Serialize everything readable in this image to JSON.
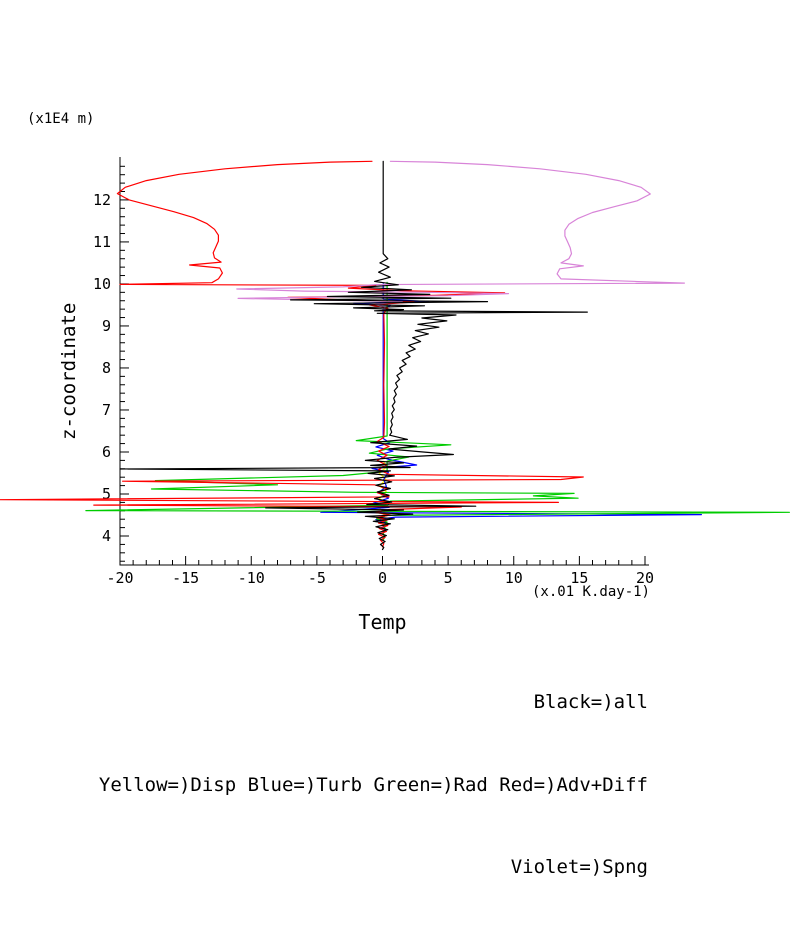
{
  "labels": {
    "legend_line1": "Black=)all",
    "legend_line2": "Yellow=)Disp Blue=)Turb Green=)Rad Red=)Adv+Diff",
    "legend_line3": "Violet=)Spng"
  },
  "chart_data": {
    "type": "line",
    "title": "",
    "xlabel": "Temp",
    "ylabel": "z-coordinate",
    "x_unit_label": "(x.01 K.day-1)",
    "y_unit_label": "(x1E4 m)",
    "xlim": [
      -20,
      20
    ],
    "ylim": [
      3.31,
      12.95
    ],
    "xticks": [
      -20,
      -15,
      -10,
      -5,
      0,
      5,
      10,
      15,
      20
    ],
    "yticks": [
      4,
      5,
      6,
      7,
      8,
      9,
      10,
      11,
      12
    ],
    "x_minor_step": 1,
    "y_minor_step": 0.2,
    "grid": false,
    "legend_position": "below-right",
    "legend_entries": [
      "Black=)all",
      "Yellow=)Disp",
      "Blue=)Turb",
      "Green=)Rad",
      "Red=)Adv+Diff",
      "Violet=)Spng"
    ],
    "series": [
      {
        "name": "Disp",
        "color": "#ffff00",
        "points": [
          [
            0.05,
            5.78
          ],
          [
            0.35,
            5.65
          ],
          [
            -0.25,
            5.5
          ],
          [
            0.25,
            5.35
          ],
          [
            -0.2,
            5.2
          ],
          [
            0.3,
            5.05
          ],
          [
            -0.25,
            4.9
          ],
          [
            0.3,
            4.77
          ],
          [
            -0.2,
            4.65
          ],
          [
            0.2,
            4.55
          ],
          [
            0.0,
            4.45
          ],
          [
            0.12,
            4.35
          ],
          [
            0.0,
            4.25
          ]
        ]
      },
      {
        "name": "Turb",
        "color": "#0000ff",
        "points": [
          [
            0.05,
            10.0
          ],
          [
            0.05,
            9.64
          ],
          [
            3.5,
            9.58
          ],
          [
            -2.2,
            9.54
          ],
          [
            0.6,
            9.49
          ],
          [
            0.05,
            9.4
          ],
          [
            0.05,
            6.32
          ],
          [
            0.55,
            6.22
          ],
          [
            -0.5,
            6.12
          ],
          [
            0.8,
            6.02
          ],
          [
            -0.4,
            5.92
          ],
          [
            0.5,
            5.82
          ],
          [
            2.6,
            5.69
          ],
          [
            -0.8,
            5.61
          ],
          [
            0.45,
            5.52
          ],
          [
            0.1,
            5.35
          ],
          [
            0.3,
            5.18
          ],
          [
            -0.3,
            5.03
          ],
          [
            0.45,
            4.9
          ],
          [
            -0.7,
            4.78
          ],
          [
            0.5,
            4.68
          ],
          [
            -4.7,
            4.565
          ],
          [
            24.3,
            4.51
          ],
          [
            1.0,
            4.45
          ],
          [
            -0.5,
            4.39
          ],
          [
            0.3,
            4.32
          ],
          [
            0.05,
            4.24
          ],
          [
            0.15,
            4.16
          ],
          [
            0.05,
            4.08
          ]
        ]
      },
      {
        "name": "Rad",
        "color": "#00cc00",
        "points": [
          [
            0.35,
            10.04
          ],
          [
            0.35,
            6.38
          ],
          [
            -2.0,
            6.27
          ],
          [
            5.2,
            6.17
          ],
          [
            0.35,
            6.07
          ],
          [
            -1.0,
            5.97
          ],
          [
            2.0,
            5.88
          ],
          [
            0.35,
            5.78
          ],
          [
            0.35,
            5.54
          ],
          [
            -3.0,
            5.44
          ],
          [
            -17.3,
            5.32
          ],
          [
            -8.0,
            5.22
          ],
          [
            -17.6,
            5.12
          ],
          [
            -2.0,
            5.04
          ],
          [
            14.6,
            5.015
          ],
          [
            11.5,
            4.955
          ],
          [
            14.9,
            4.9
          ],
          [
            0.6,
            4.83
          ],
          [
            0.4,
            4.73
          ],
          [
            -22.6,
            4.605
          ],
          [
            31.0,
            4.565
          ],
          [
            0.35,
            4.49
          ],
          [
            -0.45,
            4.41
          ],
          [
            0.35,
            4.33
          ],
          [
            0.1,
            4.24
          ],
          [
            0.25,
            4.15
          ],
          [
            0.05,
            4.06
          ],
          [
            0.15,
            3.97
          ],
          [
            0.05,
            3.9
          ]
        ]
      },
      {
        "name": "Adv+Diff",
        "color": "#ff0000",
        "points": [
          [
            -0.8,
            12.92
          ],
          [
            -4.0,
            12.9
          ],
          [
            -8.0,
            12.84
          ],
          [
            -12.0,
            12.74
          ],
          [
            -15.5,
            12.61
          ],
          [
            -18.0,
            12.46
          ],
          [
            -19.6,
            12.3
          ],
          [
            -20.2,
            12.15
          ],
          [
            -19.3,
            12.0
          ],
          [
            -17.6,
            11.86
          ],
          [
            -15.9,
            11.72
          ],
          [
            -14.4,
            11.58
          ],
          [
            -13.4,
            11.44
          ],
          [
            -12.8,
            11.3
          ],
          [
            -12.5,
            11.16
          ],
          [
            -12.5,
            11.02
          ],
          [
            -12.7,
            10.88
          ],
          [
            -12.9,
            10.74
          ],
          [
            -12.8,
            10.62
          ],
          [
            -12.3,
            10.52
          ],
          [
            -14.7,
            10.45
          ],
          [
            -12.4,
            10.38
          ],
          [
            -12.2,
            10.26
          ],
          [
            -12.5,
            10.12
          ],
          [
            -13.0,
            10.03
          ],
          [
            -20.0,
            9.99
          ],
          [
            -0.5,
            9.965
          ],
          [
            -2.6,
            9.9
          ],
          [
            1.4,
            9.84
          ],
          [
            9.3,
            9.79
          ],
          [
            4.0,
            9.73
          ],
          [
            -7.2,
            9.68
          ],
          [
            -3.0,
            9.62
          ],
          [
            2.4,
            9.57
          ],
          [
            -1.0,
            9.5
          ],
          [
            0.4,
            9.42
          ],
          [
            0.1,
            9.3
          ],
          [
            0.15,
            8.6
          ],
          [
            0.1,
            7.6
          ],
          [
            0.15,
            6.7
          ],
          [
            0.1,
            6.35
          ],
          [
            -0.4,
            6.25
          ],
          [
            0.5,
            6.13
          ],
          [
            -0.3,
            6.02
          ],
          [
            0.35,
            5.92
          ],
          [
            -0.4,
            5.8
          ],
          [
            0.3,
            5.69
          ],
          [
            -0.3,
            5.58
          ],
          [
            0.5,
            5.47
          ],
          [
            15.3,
            5.405
          ],
          [
            13.6,
            5.345
          ],
          [
            -19.8,
            5.305
          ],
          [
            -0.6,
            5.22
          ],
          [
            0.4,
            5.12
          ],
          [
            -0.4,
            5.03
          ],
          [
            0.5,
            4.93
          ],
          [
            -29.2,
            4.865
          ],
          [
            13.4,
            4.8
          ],
          [
            -22.0,
            4.735
          ],
          [
            6.0,
            4.69
          ],
          [
            0.5,
            4.63
          ],
          [
            -0.5,
            4.56
          ],
          [
            0.6,
            4.5
          ],
          [
            -0.45,
            4.44
          ],
          [
            0.35,
            4.38
          ],
          [
            -0.3,
            4.31
          ],
          [
            0.4,
            4.25
          ],
          [
            -0.25,
            4.18
          ],
          [
            0.3,
            4.11
          ],
          [
            -0.3,
            4.04
          ],
          [
            0.2,
            3.97
          ],
          [
            -0.15,
            3.9
          ],
          [
            0.1,
            3.82
          ],
          [
            0.0,
            3.74
          ]
        ]
      },
      {
        "name": "Spng",
        "color": "#d884d8",
        "points": [
          [
            0.6,
            12.92
          ],
          [
            4.0,
            12.9
          ],
          [
            8.0,
            12.84
          ],
          [
            12.0,
            12.74
          ],
          [
            15.5,
            12.61
          ],
          [
            18.0,
            12.46
          ],
          [
            19.7,
            12.3
          ],
          [
            20.4,
            12.14
          ],
          [
            19.4,
            11.98
          ],
          [
            17.7,
            11.84
          ],
          [
            16.0,
            11.7
          ],
          [
            14.9,
            11.56
          ],
          [
            14.2,
            11.42
          ],
          [
            13.9,
            11.28
          ],
          [
            13.9,
            11.14
          ],
          [
            14.1,
            11.0
          ],
          [
            14.3,
            10.86
          ],
          [
            14.4,
            10.72
          ],
          [
            14.2,
            10.6
          ],
          [
            13.6,
            10.5
          ],
          [
            15.3,
            10.43
          ],
          [
            13.5,
            10.36
          ],
          [
            13.3,
            10.24
          ],
          [
            13.6,
            10.12
          ],
          [
            23.0,
            10.02
          ],
          [
            -0.5,
            9.985
          ],
          [
            -3.0,
            9.93
          ],
          [
            -11.1,
            9.88
          ],
          [
            -6.0,
            9.83
          ],
          [
            3.0,
            9.8
          ],
          [
            9.6,
            9.77
          ],
          [
            5.0,
            9.72
          ],
          [
            -4.0,
            9.69
          ],
          [
            -11.0,
            9.655
          ],
          [
            -5.0,
            9.62
          ],
          [
            1.5,
            9.58
          ],
          [
            -0.5,
            9.52
          ],
          [
            0.2,
            9.44
          ],
          [
            0.05,
            9.36
          ]
        ]
      },
      {
        "name": "all",
        "color": "#000000",
        "points": [
          [
            0.05,
            12.92
          ],
          [
            0.05,
            10.72
          ],
          [
            0.4,
            10.6
          ],
          [
            -0.2,
            10.5
          ],
          [
            0.5,
            10.4
          ],
          [
            -0.3,
            10.28
          ],
          [
            0.6,
            10.16
          ],
          [
            -0.6,
            10.06
          ],
          [
            1.2,
            9.98
          ],
          [
            -1.6,
            9.92
          ],
          [
            2.2,
            9.86
          ],
          [
            -2.6,
            9.8
          ],
          [
            3.6,
            9.75
          ],
          [
            -4.2,
            9.7
          ],
          [
            5.2,
            9.66
          ],
          [
            -7.0,
            9.62
          ],
          [
            8.0,
            9.58
          ],
          [
            -5.2,
            9.53
          ],
          [
            3.2,
            9.48
          ],
          [
            -2.2,
            9.43
          ],
          [
            1.6,
            9.39
          ],
          [
            -0.6,
            9.36
          ],
          [
            15.6,
            9.33
          ],
          [
            -0.4,
            9.3
          ],
          [
            5.6,
            9.26
          ],
          [
            3.0,
            9.19
          ],
          [
            4.9,
            9.12
          ],
          [
            2.7,
            9.04
          ],
          [
            4.3,
            8.97
          ],
          [
            2.5,
            8.89
          ],
          [
            3.5,
            8.81
          ],
          [
            2.3,
            8.72
          ],
          [
            2.9,
            8.63
          ],
          [
            2.0,
            8.54
          ],
          [
            2.5,
            8.45
          ],
          [
            1.8,
            8.36
          ],
          [
            2.1,
            8.27
          ],
          [
            1.5,
            8.18
          ],
          [
            1.8,
            8.09
          ],
          [
            1.3,
            8.0
          ],
          [
            1.5,
            7.91
          ],
          [
            1.1,
            7.82
          ],
          [
            1.3,
            7.73
          ],
          [
            1.0,
            7.64
          ],
          [
            1.15,
            7.55
          ],
          [
            0.9,
            7.46
          ],
          [
            1.05,
            7.37
          ],
          [
            0.85,
            7.28
          ],
          [
            0.95,
            7.19
          ],
          [
            0.75,
            7.1
          ],
          [
            0.9,
            7.01
          ],
          [
            0.7,
            6.92
          ],
          [
            0.8,
            6.83
          ],
          [
            0.65,
            6.74
          ],
          [
            0.75,
            6.65
          ],
          [
            0.6,
            6.56
          ],
          [
            0.7,
            6.47
          ],
          [
            0.55,
            6.4
          ],
          [
            1.9,
            6.3
          ],
          [
            -0.9,
            6.22
          ],
          [
            2.6,
            6.14
          ],
          [
            0.5,
            6.07
          ],
          [
            3.1,
            6.0
          ],
          [
            5.4,
            5.94
          ],
          [
            0.9,
            5.87
          ],
          [
            -1.3,
            5.8
          ],
          [
            1.6,
            5.74
          ],
          [
            -0.9,
            5.68
          ],
          [
            2.1,
            5.63
          ],
          [
            -20.0,
            5.595
          ],
          [
            0.6,
            5.55
          ],
          [
            -1.1,
            5.49
          ],
          [
            0.9,
            5.43
          ],
          [
            -0.6,
            5.37
          ],
          [
            0.7,
            5.29
          ],
          [
            -0.5,
            5.21
          ],
          [
            0.6,
            5.13
          ],
          [
            -0.4,
            5.05
          ],
          [
            0.5,
            4.97
          ],
          [
            -0.6,
            4.89
          ],
          [
            0.7,
            4.81
          ],
          [
            -1.2,
            4.75
          ],
          [
            7.1,
            4.71
          ],
          [
            -8.9,
            4.67
          ],
          [
            1.6,
            4.62
          ],
          [
            -1.9,
            4.57
          ],
          [
            2.3,
            4.52
          ],
          [
            -1.3,
            4.47
          ],
          [
            0.9,
            4.41
          ],
          [
            -0.7,
            4.35
          ],
          [
            0.6,
            4.29
          ],
          [
            -0.5,
            4.22
          ],
          [
            0.4,
            4.15
          ],
          [
            -0.35,
            4.08
          ],
          [
            0.3,
            4.01
          ],
          [
            -0.25,
            3.94
          ],
          [
            0.2,
            3.87
          ],
          [
            -0.15,
            3.8
          ],
          [
            0.1,
            3.73
          ],
          [
            0.0,
            3.68
          ]
        ]
      }
    ]
  }
}
